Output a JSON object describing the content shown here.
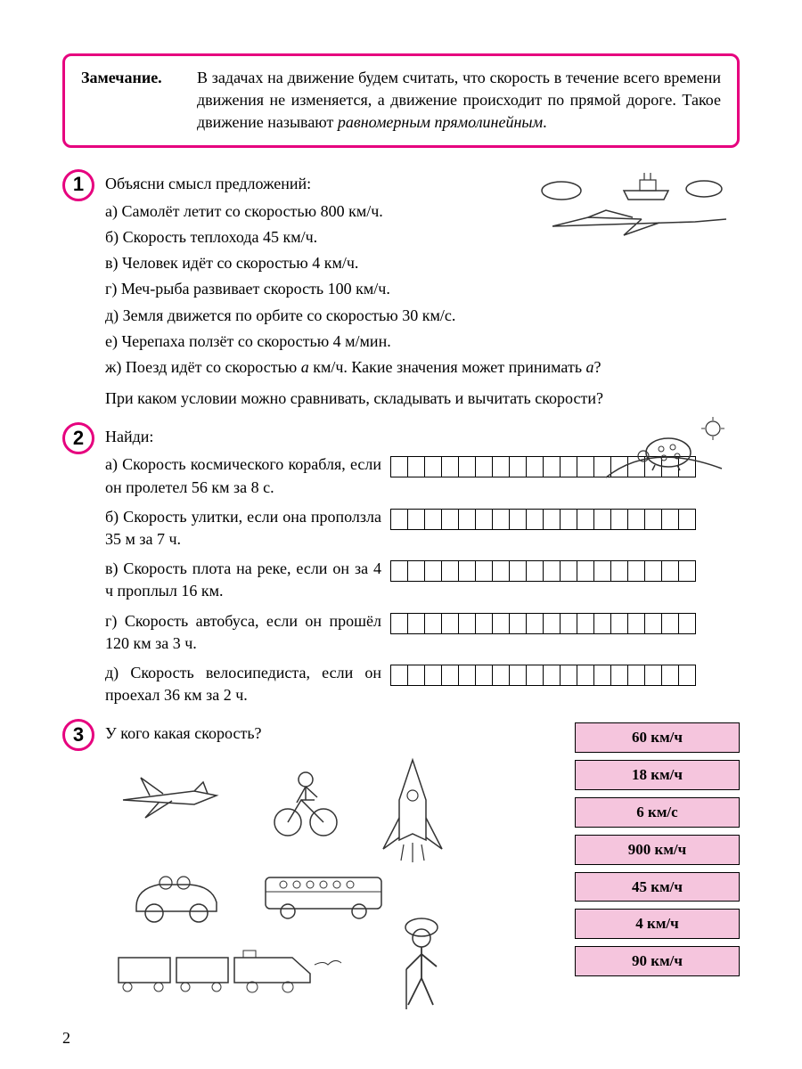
{
  "note": {
    "label": "Замечание.",
    "text_prefix": "В задачах на движение будем считать, что скорость в течение всего времени движения не изменяется, а движение происходит по прямой дороге. Такое дви­жение называют ",
    "text_emphasis": "равномерным прямолинейным",
    "text_suffix": "."
  },
  "problem1": {
    "number": "1",
    "title": "Объясни смысл предложений:",
    "items": [
      "а) Самолёт летит со скоростью 800 км/ч.",
      "б) Скорость теплохода 45 км/ч.",
      "в) Человек идёт со скоростью 4 км/ч.",
      "г) Меч-рыба развивает скорость 100 км/ч.",
      "д) Земля движется по орбите со скоростью 30 км/с.",
      "е) Черепаха ползёт со скоростью 4 м/мин."
    ],
    "item_zh_prefix": "ж) Поезд идёт со скоростью ",
    "item_zh_var": "а",
    "item_zh_mid": " км/ч. Какие значения может при­нимать ",
    "item_zh_var2": "а",
    "item_zh_end": "?",
    "footer": "При каком условии можно сравнивать, складывать и вычитать скорости?"
  },
  "problem2": {
    "number": "2",
    "title": "Найди:",
    "items": [
      "а) Скорость космического кораб­ля, если он пролетел 56 км за 8 с.",
      "б) Скорость улитки, если она про­ползла 35 м за 7 ч.",
      "в) Скорость плота на реке, если он за 4 ч проплыл 16 км.",
      "г) Скорость автобуса, если он про­шёл 120 км за 3 ч.",
      "д) Скорость велосипедиста, если он проехал 36 км за 2 ч."
    ],
    "answer_cells": 18
  },
  "problem3": {
    "number": "3",
    "title": "У кого какая скорость?",
    "speeds": [
      "60 км/ч",
      "18 км/ч",
      "6 км/с",
      "900 км/ч",
      "45 км/ч",
      "4 км/ч",
      "90 км/ч"
    ]
  },
  "page_number": "2",
  "colors": {
    "accent": "#e6007e",
    "speed_box_bg": "#f5c5dd",
    "black": "#000000",
    "white": "#ffffff"
  }
}
